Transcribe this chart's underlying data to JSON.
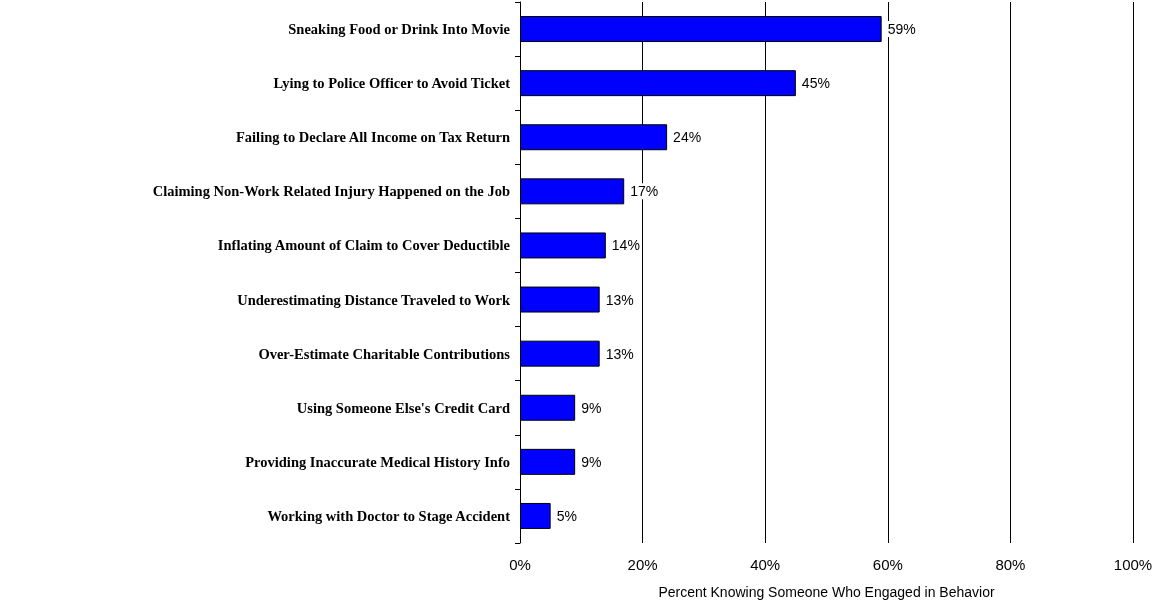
{
  "chart_data": {
    "type": "bar",
    "orientation": "horizontal",
    "categories": [
      "Sneaking Food or Drink Into Movie",
      "Lying to Police Officer to Avoid Ticket",
      "Failing to Declare All Income on Tax Return",
      "Claiming Non-Work Related Injury Happened on the Job",
      "Inflating Amount of Claim to Cover Deductible",
      "Underestimating Distance Traveled to Work",
      "Over-Estimate Charitable Contributions",
      "Using Someone Else's Credit Card",
      "Providing Inaccurate Medical History Info",
      "Working with Doctor to Stage Accident"
    ],
    "values": [
      59,
      45,
      24,
      17,
      14,
      13,
      13,
      9,
      9,
      5
    ],
    "value_labels": [
      "59%",
      "45%",
      "24%",
      "17%",
      "14%",
      "13%",
      "13%",
      "9%",
      "9%",
      "5%"
    ],
    "color": "#0000ff",
    "xlabel": "Percent Knowing Someone Who Engaged in Behavior",
    "xlim": [
      0,
      100
    ],
    "xticks": [
      {
        "value": 0,
        "label": "0%"
      },
      {
        "value": 20,
        "label": "20%"
      },
      {
        "value": 40,
        "label": "40%"
      },
      {
        "value": 60,
        "label": "60%"
      },
      {
        "value": 80,
        "label": "80%"
      },
      {
        "value": 100,
        "label": "100%"
      }
    ],
    "grid": "x"
  }
}
